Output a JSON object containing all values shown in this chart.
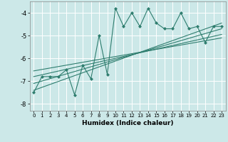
{
  "title": "",
  "xlabel": "Humidex (Indice chaleur)",
  "background_color": "#cce8e8",
  "grid_color": "#ffffff",
  "line_color": "#2e7d6e",
  "x_data": [
    0,
    1,
    2,
    3,
    4,
    5,
    6,
    7,
    8,
    9,
    10,
    11,
    12,
    13,
    14,
    15,
    16,
    17,
    18,
    19,
    20,
    21,
    22,
    23
  ],
  "y_main": [
    -7.5,
    -6.8,
    -6.8,
    -6.8,
    -6.5,
    -7.6,
    -6.3,
    -6.9,
    -5.0,
    -6.7,
    -3.8,
    -4.6,
    -4.0,
    -4.6,
    -3.8,
    -4.45,
    -4.7,
    -4.7,
    -4.0,
    -4.7,
    -4.6,
    -5.3,
    -4.6,
    -4.6
  ],
  "regression_lines": [
    {
      "x": [
        0,
        23
      ],
      "y": [
        -7.4,
        -4.45
      ]
    },
    {
      "x": [
        0,
        23
      ],
      "y": [
        -7.1,
        -4.7
      ]
    },
    {
      "x": [
        0,
        23
      ],
      "y": [
        -6.8,
        -4.95
      ]
    },
    {
      "x": [
        0,
        23
      ],
      "y": [
        -6.55,
        -5.1
      ]
    }
  ],
  "xlim": [
    -0.5,
    23.5
  ],
  "ylim": [
    -8.3,
    -3.5
  ],
  "yticks": [
    -8,
    -7,
    -6,
    -5,
    -4
  ],
  "xticks": [
    0,
    1,
    2,
    3,
    4,
    5,
    6,
    7,
    8,
    9,
    10,
    11,
    12,
    13,
    14,
    15,
    16,
    17,
    18,
    19,
    20,
    21,
    22,
    23
  ]
}
